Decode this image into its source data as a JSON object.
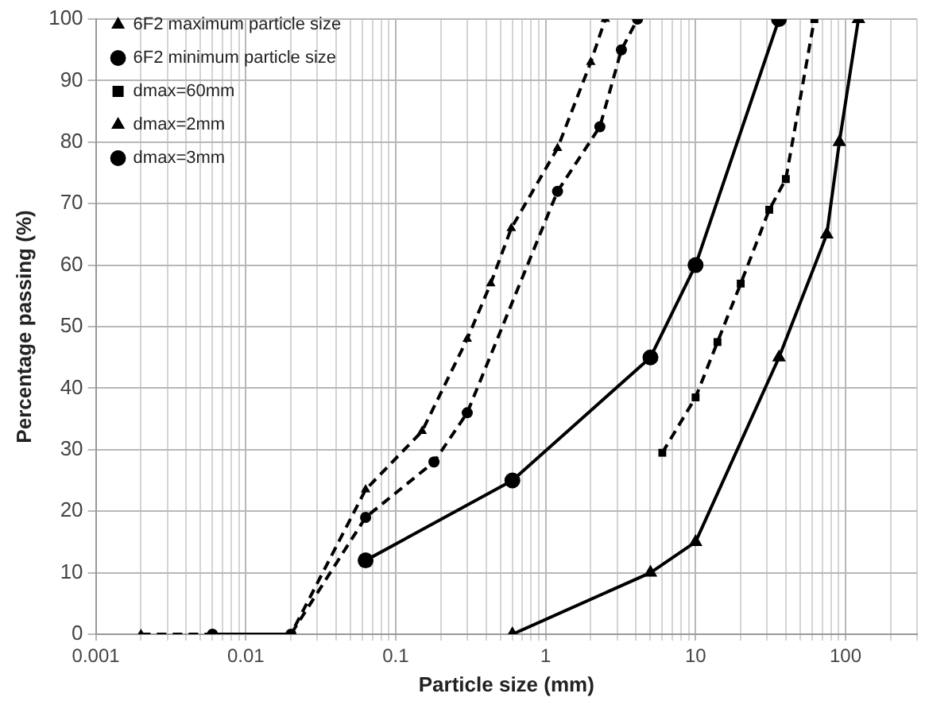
{
  "chart_data": {
    "type": "line",
    "xlabel": "Particle size (mm)",
    "ylabel": "Percentage passing (%)",
    "log": "x",
    "xlim": [
      0.001,
      300
    ],
    "xticks": [
      0.001,
      0.01,
      0.1,
      1,
      10,
      100
    ],
    "ylim": [
      0,
      100
    ],
    "yticks": [
      0,
      10,
      20,
      30,
      40,
      50,
      60,
      70,
      80,
      90,
      100
    ],
    "grid": true,
    "legend": "top left",
    "series": [
      {
        "name": "6F2 maximum particle size",
        "color": "#000000",
        "marker": "triangle",
        "line_style": "solid",
        "x": [
          0.6,
          5,
          10,
          36,
          75,
          91,
          122
        ],
        "values": [
          0,
          10,
          15,
          45,
          65,
          80,
          100
        ]
      },
      {
        "name": "6F2 minimum particle size",
        "color": "#000000",
        "marker": "circle",
        "line_style": "solid",
        "x": [
          0.063,
          0.6,
          5,
          10,
          36
        ],
        "values": [
          12,
          25,
          45,
          60,
          100
        ]
      },
      {
        "name": "dmax=60mm",
        "color": "#000000",
        "marker": "square",
        "line_style": "dashed",
        "x": [
          6,
          10,
          14,
          20,
          31,
          40,
          62
        ],
        "values": [
          29.5,
          38.5,
          47.5,
          57,
          69,
          74,
          100
        ]
      },
      {
        "name": "dmax=2mm",
        "color": "#000000",
        "marker": "triangle",
        "line_style": "dashed",
        "x": [
          0.002,
          0.02,
          0.063,
          0.15,
          0.3,
          0.43,
          0.59,
          1.2,
          2,
          2.5
        ],
        "values": [
          0,
          0,
          23.5,
          33,
          48,
          57,
          66,
          79,
          93,
          100
        ]
      },
      {
        "name": "dmax=3mm",
        "color": "#000000",
        "marker": "circle",
        "line_style": "dashed",
        "x": [
          0.006,
          0.02,
          0.063,
          0.18,
          0.3,
          1.2,
          2.3,
          3.2,
          4.1
        ],
        "values": [
          0,
          0,
          19,
          28,
          36,
          72,
          82.5,
          95,
          100
        ]
      }
    ]
  }
}
